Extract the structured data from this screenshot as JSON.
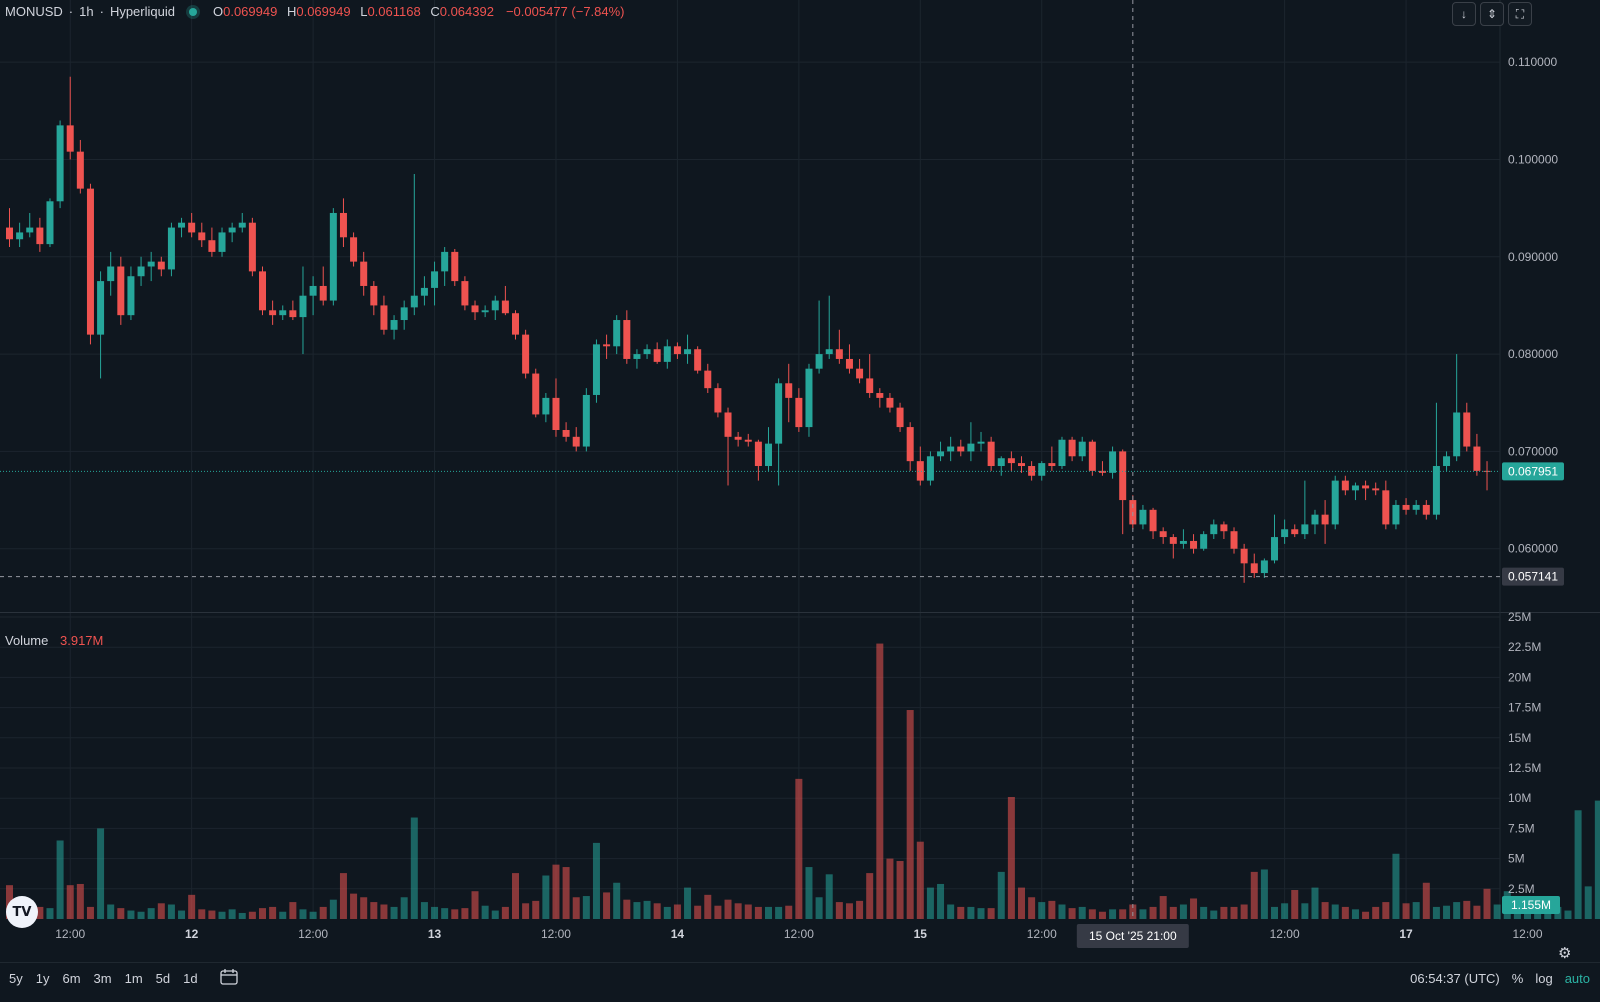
{
  "legend": {
    "symbol": "MONUSD",
    "interval": "1h",
    "exchange": "Hyperliquid",
    "o_label": "O",
    "o_value": "0.069949",
    "h_label": "H",
    "h_value": "0.069949",
    "l_label": "L",
    "l_value": "0.061168",
    "c_label": "C",
    "c_value": "0.064392",
    "change": "−0.005477 (−7.84%)"
  },
  "volume_legend": {
    "label": "Volume",
    "value": "3.917M"
  },
  "top_buttons": {
    "scroll_down": "↓",
    "collapse": "⇕",
    "fullscreen": "⛶"
  },
  "crosshair": {
    "time_label": "15 Oct '25   21:00"
  },
  "price_badges": {
    "last_price": "0.067951",
    "crosshair_price": "0.057141",
    "volume_last": "1.155M"
  },
  "bottom_bar": {
    "ranges": [
      "5y",
      "1y",
      "6m",
      "3m",
      "1m",
      "5d",
      "1d"
    ],
    "clock": "06:54:37 (UTC)",
    "percent": "%",
    "log": "log",
    "auto": "auto"
  },
  "colors": {
    "up": "#26a69a",
    "down": "#ef5350",
    "background": "#0f171f",
    "grid": "#1c252e"
  },
  "chart_data": [
    {
      "type": "candlestick",
      "title": "MONUSD · 1h · Hyperliquid",
      "y_ticks": [
        0.06,
        0.07,
        0.08,
        0.09,
        0.1,
        0.11
      ],
      "y_tick_labels": [
        "0.060000",
        "0.070000",
        "0.080000",
        "0.090000",
        "0.100000",
        "0.110000"
      ],
      "ylim": [
        0.0535,
        0.1133
      ],
      "x_ticks": [
        {
          "index": 6,
          "label": "12:00"
        },
        {
          "index": 18,
          "label": "12"
        },
        {
          "index": 30,
          "label": "12:00"
        },
        {
          "index": 42,
          "label": "13"
        },
        {
          "index": 54,
          "label": "12:00"
        },
        {
          "index": 66,
          "label": "14"
        },
        {
          "index": 78,
          "label": "12:00"
        },
        {
          "index": 90,
          "label": "15"
        },
        {
          "index": 102,
          "label": "12:00"
        },
        {
          "index": 126,
          "label": "12:00"
        },
        {
          "index": 138,
          "label": "17"
        },
        {
          "index": 150,
          "label": "12:00"
        }
      ],
      "crosshair_index": 111,
      "last_price": 0.067951,
      "crosshair_price": 0.057141,
      "grid": true,
      "candles": [
        [
          0.093,
          0.095,
          0.091,
          0.0918
        ],
        [
          0.0918,
          0.0935,
          0.091,
          0.0925
        ],
        [
          0.0925,
          0.0945,
          0.092,
          0.093
        ],
        [
          0.093,
          0.094,
          0.0905,
          0.0913
        ],
        [
          0.0913,
          0.096,
          0.091,
          0.0957
        ],
        [
          0.0957,
          0.104,
          0.095,
          0.1035
        ],
        [
          0.1035,
          0.1085,
          0.1,
          0.1008
        ],
        [
          0.1008,
          0.102,
          0.0965,
          0.097
        ],
        [
          0.097,
          0.0975,
          0.081,
          0.082
        ],
        [
          0.082,
          0.0885,
          0.0775,
          0.0875
        ],
        [
          0.0875,
          0.0905,
          0.086,
          0.089
        ],
        [
          0.089,
          0.09,
          0.083,
          0.084
        ],
        [
          0.084,
          0.089,
          0.0835,
          0.088
        ],
        [
          0.088,
          0.09,
          0.087,
          0.089
        ],
        [
          0.089,
          0.0905,
          0.0875,
          0.0895
        ],
        [
          0.0895,
          0.09,
          0.088,
          0.0887
        ],
        [
          0.0887,
          0.0935,
          0.088,
          0.093
        ],
        [
          0.093,
          0.094,
          0.092,
          0.0935
        ],
        [
          0.0935,
          0.0945,
          0.092,
          0.0925
        ],
        [
          0.0925,
          0.0935,
          0.091,
          0.0917
        ],
        [
          0.0917,
          0.093,
          0.09,
          0.0905
        ],
        [
          0.0905,
          0.093,
          0.09,
          0.0925
        ],
        [
          0.0925,
          0.0935,
          0.0915,
          0.093
        ],
        [
          0.093,
          0.0945,
          0.0925,
          0.0935
        ],
        [
          0.0935,
          0.094,
          0.088,
          0.0885
        ],
        [
          0.0885,
          0.089,
          0.084,
          0.0845
        ],
        [
          0.0845,
          0.0855,
          0.083,
          0.084
        ],
        [
          0.084,
          0.085,
          0.0835,
          0.0845
        ],
        [
          0.0845,
          0.0855,
          0.0835,
          0.0838
        ],
        [
          0.0838,
          0.089,
          0.08,
          0.086
        ],
        [
          0.086,
          0.088,
          0.084,
          0.087
        ],
        [
          0.087,
          0.089,
          0.085,
          0.0855
        ],
        [
          0.0855,
          0.095,
          0.085,
          0.0945
        ],
        [
          0.0945,
          0.096,
          0.091,
          0.092
        ],
        [
          0.092,
          0.0925,
          0.089,
          0.0895
        ],
        [
          0.0895,
          0.0905,
          0.086,
          0.087
        ],
        [
          0.087,
          0.0875,
          0.084,
          0.085
        ],
        [
          0.085,
          0.086,
          0.082,
          0.0825
        ],
        [
          0.0825,
          0.084,
          0.0815,
          0.0835
        ],
        [
          0.0835,
          0.0855,
          0.0825,
          0.0848
        ],
        [
          0.0848,
          0.0985,
          0.084,
          0.086
        ],
        [
          0.086,
          0.088,
          0.085,
          0.0868
        ],
        [
          0.0868,
          0.0895,
          0.085,
          0.0885
        ],
        [
          0.0885,
          0.091,
          0.087,
          0.0905
        ],
        [
          0.0905,
          0.0908,
          0.087,
          0.0875
        ],
        [
          0.0875,
          0.088,
          0.0845,
          0.085
        ],
        [
          0.085,
          0.0855,
          0.0835,
          0.0843
        ],
        [
          0.0843,
          0.085,
          0.0838,
          0.0845
        ],
        [
          0.0845,
          0.086,
          0.0835,
          0.0855
        ],
        [
          0.0855,
          0.087,
          0.084,
          0.0842
        ],
        [
          0.0842,
          0.0845,
          0.0815,
          0.082
        ],
        [
          0.082,
          0.0825,
          0.0775,
          0.078
        ],
        [
          0.078,
          0.0785,
          0.0735,
          0.0738
        ],
        [
          0.0738,
          0.076,
          0.073,
          0.0755
        ],
        [
          0.0755,
          0.0775,
          0.0715,
          0.0722
        ],
        [
          0.0722,
          0.073,
          0.071,
          0.0715
        ],
        [
          0.0715,
          0.0725,
          0.07,
          0.0705
        ],
        [
          0.0705,
          0.0765,
          0.07,
          0.0758
        ],
        [
          0.0758,
          0.0815,
          0.075,
          0.081
        ],
        [
          0.081,
          0.082,
          0.0795,
          0.0808
        ],
        [
          0.0808,
          0.084,
          0.08,
          0.0835
        ],
        [
          0.0835,
          0.0845,
          0.079,
          0.0795
        ],
        [
          0.0795,
          0.0805,
          0.0785,
          0.08
        ],
        [
          0.08,
          0.081,
          0.0795,
          0.0805
        ],
        [
          0.0805,
          0.0812,
          0.079,
          0.0792
        ],
        [
          0.0792,
          0.0815,
          0.0785,
          0.0808
        ],
        [
          0.0808,
          0.0812,
          0.0795,
          0.08
        ],
        [
          0.08,
          0.082,
          0.079,
          0.0805
        ],
        [
          0.0805,
          0.0808,
          0.078,
          0.0783
        ],
        [
          0.0783,
          0.079,
          0.076,
          0.0765
        ],
        [
          0.0765,
          0.077,
          0.0735,
          0.074
        ],
        [
          0.074,
          0.0745,
          0.0665,
          0.0715
        ],
        [
          0.0715,
          0.072,
          0.0705,
          0.0712
        ],
        [
          0.0712,
          0.0718,
          0.0705,
          0.071
        ],
        [
          0.071,
          0.0712,
          0.067,
          0.0685
        ],
        [
          0.0685,
          0.0725,
          0.068,
          0.0708
        ],
        [
          0.0708,
          0.0775,
          0.0665,
          0.077
        ],
        [
          0.077,
          0.079,
          0.073,
          0.0755
        ],
        [
          0.0755,
          0.0765,
          0.072,
          0.0725
        ],
        [
          0.0725,
          0.079,
          0.0715,
          0.0785
        ],
        [
          0.0785,
          0.0855,
          0.078,
          0.08
        ],
        [
          0.08,
          0.086,
          0.0795,
          0.0805
        ],
        [
          0.0805,
          0.0825,
          0.079,
          0.0795
        ],
        [
          0.0795,
          0.081,
          0.078,
          0.0785
        ],
        [
          0.0785,
          0.0795,
          0.077,
          0.0775
        ],
        [
          0.0775,
          0.08,
          0.0755,
          0.076
        ],
        [
          0.076,
          0.0765,
          0.0745,
          0.0755
        ],
        [
          0.0755,
          0.076,
          0.074,
          0.0745
        ],
        [
          0.0745,
          0.075,
          0.072,
          0.0725
        ],
        [
          0.0725,
          0.073,
          0.068,
          0.069
        ],
        [
          0.069,
          0.0705,
          0.0665,
          0.067
        ],
        [
          0.067,
          0.07,
          0.0665,
          0.0695
        ],
        [
          0.0695,
          0.071,
          0.069,
          0.07
        ],
        [
          0.07,
          0.0715,
          0.069,
          0.0705
        ],
        [
          0.0705,
          0.0712,
          0.0695,
          0.07
        ],
        [
          0.07,
          0.073,
          0.069,
          0.0708
        ],
        [
          0.0708,
          0.072,
          0.07,
          0.071
        ],
        [
          0.071,
          0.0715,
          0.068,
          0.0685
        ],
        [
          0.0685,
          0.0695,
          0.0675,
          0.0693
        ],
        [
          0.0693,
          0.07,
          0.068,
          0.0688
        ],
        [
          0.0688,
          0.0695,
          0.0678,
          0.0685
        ],
        [
          0.0685,
          0.069,
          0.067,
          0.0675
        ],
        [
          0.0675,
          0.069,
          0.067,
          0.0688
        ],
        [
          0.0688,
          0.0705,
          0.068,
          0.0685
        ],
        [
          0.0685,
          0.0715,
          0.0682,
          0.0712
        ],
        [
          0.0712,
          0.0715,
          0.069,
          0.0695
        ],
        [
          0.0695,
          0.0715,
          0.069,
          0.071
        ],
        [
          0.071,
          0.0712,
          0.0675,
          0.068
        ],
        [
          0.068,
          0.069,
          0.0675,
          0.0678
        ],
        [
          0.0678,
          0.0705,
          0.0672,
          0.07
        ],
        [
          0.07,
          0.0702,
          0.0615,
          0.065
        ],
        [
          0.065,
          0.0655,
          0.062,
          0.0625
        ],
        [
          0.0625,
          0.0645,
          0.062,
          0.064
        ],
        [
          0.064,
          0.0642,
          0.061,
          0.0618
        ],
        [
          0.0618,
          0.0622,
          0.0605,
          0.0612
        ],
        [
          0.0612,
          0.0615,
          0.059,
          0.0605
        ],
        [
          0.0605,
          0.062,
          0.06,
          0.0608
        ],
        [
          0.0608,
          0.0615,
          0.0595,
          0.06
        ],
        [
          0.06,
          0.0618,
          0.0598,
          0.0615
        ],
        [
          0.0615,
          0.063,
          0.061,
          0.0625
        ],
        [
          0.0625,
          0.0628,
          0.061,
          0.0618
        ],
        [
          0.0618,
          0.0622,
          0.0595,
          0.06
        ],
        [
          0.06,
          0.0605,
          0.0565,
          0.0585
        ],
        [
          0.0585,
          0.0595,
          0.057,
          0.0575
        ],
        [
          0.0575,
          0.059,
          0.057,
          0.0588
        ],
        [
          0.0588,
          0.0635,
          0.0585,
          0.0612
        ],
        [
          0.0612,
          0.063,
          0.0605,
          0.062
        ],
        [
          0.062,
          0.0625,
          0.0612,
          0.0615
        ],
        [
          0.0615,
          0.067,
          0.061,
          0.0625
        ],
        [
          0.0625,
          0.064,
          0.0615,
          0.0635
        ],
        [
          0.0635,
          0.065,
          0.0605,
          0.0625
        ],
        [
          0.0625,
          0.0675,
          0.062,
          0.067
        ],
        [
          0.067,
          0.0675,
          0.0655,
          0.066
        ],
        [
          0.066,
          0.0668,
          0.065,
          0.0665
        ],
        [
          0.0665,
          0.067,
          0.065,
          0.0662
        ],
        [
          0.0662,
          0.0668,
          0.0655,
          0.066
        ],
        [
          0.066,
          0.067,
          0.062,
          0.0625
        ],
        [
          0.0625,
          0.065,
          0.062,
          0.0645
        ],
        [
          0.0645,
          0.0652,
          0.0635,
          0.064
        ],
        [
          0.064,
          0.065,
          0.0635,
          0.0645
        ],
        [
          0.0645,
          0.065,
          0.063,
          0.0635
        ],
        [
          0.0635,
          0.075,
          0.063,
          0.0685
        ],
        [
          0.0685,
          0.07,
          0.068,
          0.0695
        ],
        [
          0.0695,
          0.08,
          0.069,
          0.074
        ],
        [
          0.074,
          0.075,
          0.07,
          0.0705
        ],
        [
          0.0705,
          0.0718,
          0.0675,
          0.068
        ],
        [
          0.068,
          0.069,
          0.066,
          0.0679
        ]
      ]
    },
    {
      "type": "bar",
      "title": "Volume",
      "value_label": "3.917M",
      "ylim": [
        0,
        25000000
      ],
      "y_ticks": [
        2500000,
        5000000,
        7500000,
        10000000,
        12500000,
        15000000,
        17500000,
        20000000,
        22500000,
        25000000
      ],
      "y_tick_labels": [
        "2.5M",
        "5M",
        "7.5M",
        "10M",
        "12.5M",
        "15M",
        "17.5M",
        "20M",
        "22.5M",
        "25M"
      ],
      "last_value": 1155000,
      "values_millions": [
        2.8,
        1.2,
        0.8,
        1.0,
        0.9,
        6.5,
        2.8,
        2.9,
        1.0,
        7.5,
        1.2,
        0.9,
        0.7,
        0.6,
        0.9,
        1.3,
        1.2,
        0.7,
        2.0,
        0.8,
        0.7,
        0.6,
        0.8,
        0.5,
        0.6,
        0.9,
        1.0,
        0.6,
        1.4,
        0.8,
        0.6,
        1.0,
        1.6,
        3.8,
        2.1,
        1.8,
        1.4,
        1.2,
        1.0,
        1.8,
        8.4,
        1.4,
        1.0,
        0.9,
        0.8,
        0.9,
        2.3,
        1.1,
        0.7,
        1.0,
        3.8,
        1.3,
        1.5,
        3.6,
        4.5,
        4.3,
        1.8,
        1.9,
        6.3,
        2.2,
        3.0,
        1.6,
        1.4,
        1.5,
        1.3,
        1.0,
        1.2,
        2.6,
        1.1,
        2.0,
        1.1,
        1.6,
        1.3,
        1.2,
        1.0,
        1.0,
        1.0,
        1.1,
        11.6,
        4.3,
        1.8,
        3.7,
        1.4,
        1.3,
        1.5,
        3.8,
        22.8,
        5.0,
        4.8,
        17.3,
        6.4,
        2.6,
        2.9,
        1.2,
        1.0,
        1.0,
        0.9,
        0.9,
        3.9,
        10.1,
        2.6,
        1.8,
        1.4,
        1.5,
        1.2,
        0.9,
        1.0,
        0.8,
        0.6,
        0.8,
        0.8,
        1.2,
        0.8,
        1.0,
        1.9,
        1.0,
        1.2,
        1.7,
        1.0,
        0.7,
        1.0,
        1.0,
        1.2,
        3.9,
        4.1,
        1.0,
        1.3,
        2.4,
        1.3,
        2.6,
        1.4,
        1.2,
        1.0,
        0.8,
        0.6,
        1.0,
        1.4,
        5.4,
        1.3,
        1.4,
        3.0,
        1.0,
        1.1,
        1.4,
        1.5,
        1.1,
        2.5,
        1.2,
        2.3,
        0.8,
        0.7,
        0.6,
        0.8,
        1.0,
        0.7,
        9.0,
        2.7,
        9.8,
        3.1,
        2.5,
        1.2
      ],
      "grid": true
    }
  ]
}
